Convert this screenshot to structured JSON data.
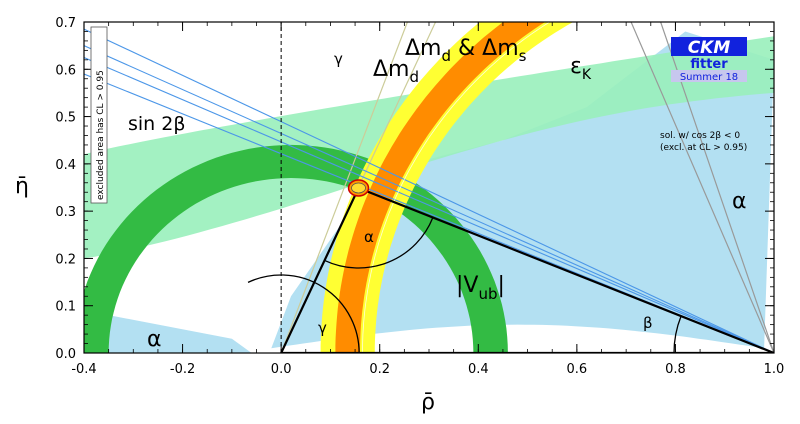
{
  "chart_data": {
    "type": "scatter",
    "xlabel": "ρ̄",
    "ylabel": "η̄",
    "xlim": [
      -0.4,
      1.0
    ],
    "ylim": [
      0.0,
      0.7
    ],
    "x_ticks": [
      -0.4,
      -0.2,
      0.0,
      0.2,
      0.4,
      0.6,
      0.8,
      1.0
    ],
    "y_ticks": [
      0.0,
      0.1,
      0.2,
      0.3,
      0.4,
      0.5,
      0.6,
      0.7
    ],
    "x_tick_labels": [
      "-0.4",
      "-0.2",
      "0.0",
      "0.2",
      "0.4",
      "0.6",
      "0.8",
      "1.0"
    ],
    "y_tick_labels": [
      "0.0",
      "0.1",
      "0.2",
      "0.3",
      "0.4",
      "0.5",
      "0.6",
      "0.7"
    ],
    "grid": false,
    "best_fit": {
      "rho": 0.157,
      "eta": 0.349
    },
    "triangle": [
      [
        0.0,
        0.0
      ],
      [
        1.0,
        0.0
      ],
      [
        0.157,
        0.349
      ]
    ],
    "constraints": [
      {
        "label": "|Vub|",
        "kind": "annulus",
        "r_inner": 0.37,
        "r_outer": 0.44,
        "color": "#33bb44"
      },
      {
        "label": "Δmd",
        "kind": "annulus_about_1_0",
        "r_inner": 0.81,
        "r_outer": 0.92,
        "color": "#ffff33"
      },
      {
        "label": "Δmd & Δms",
        "kind": "annulus_about_1_0",
        "r_inner": 0.84,
        "r_outer": 0.89,
        "color": "#ff8c00"
      },
      {
        "label": "εK",
        "kind": "hyperbola_band",
        "color": "#99f0bb"
      },
      {
        "label": "sin 2β",
        "kind": "lines_through_1_0",
        "color": "#4c97e8"
      },
      {
        "label": "α",
        "kind": "region",
        "color": "#b3e0f2"
      },
      {
        "label": "γ",
        "kind": "wedge_from_origin",
        "color": "#cccc99"
      }
    ],
    "labels": {
      "gamma_top": "γ",
      "dmd": "Δm",
      "dmd_sub": "d",
      "dmds_a": "Δm",
      "dmds_a_sub": "d",
      "dmds_amp": " & Δm",
      "dmds_b_sub": "s",
      "epsk": "ε",
      "epsk_sub": "K",
      "sin2b": "sin 2β",
      "vub_a": "|V",
      "vub_sub": "ub",
      "vub_b": "|",
      "alpha_right": "α",
      "alpha_left": "α",
      "alpha_triangle": "α",
      "beta_triangle": "β",
      "gamma_triangle": "γ",
      "excluded_note": "excluded area has CL > 0.95",
      "cos2b_line1": "sol. w/ cos 2β < 0",
      "cos2b_line2": "(excl. at CL > 0.95)"
    },
    "logo": {
      "line1": "CKM",
      "line2": "fitter",
      "line3": "Summer 18"
    },
    "colors": {
      "vub": "#33bb44",
      "dmd": "#ffff33",
      "dmds": "#ff8c00",
      "epsk": "#99f0bb",
      "alpha": "#b3e0f2",
      "sin2b": "#4c97e8",
      "gamma": "#cccc99",
      "logo_blue": "#1122dd",
      "logo_bg": "#c7c7ee"
    }
  }
}
